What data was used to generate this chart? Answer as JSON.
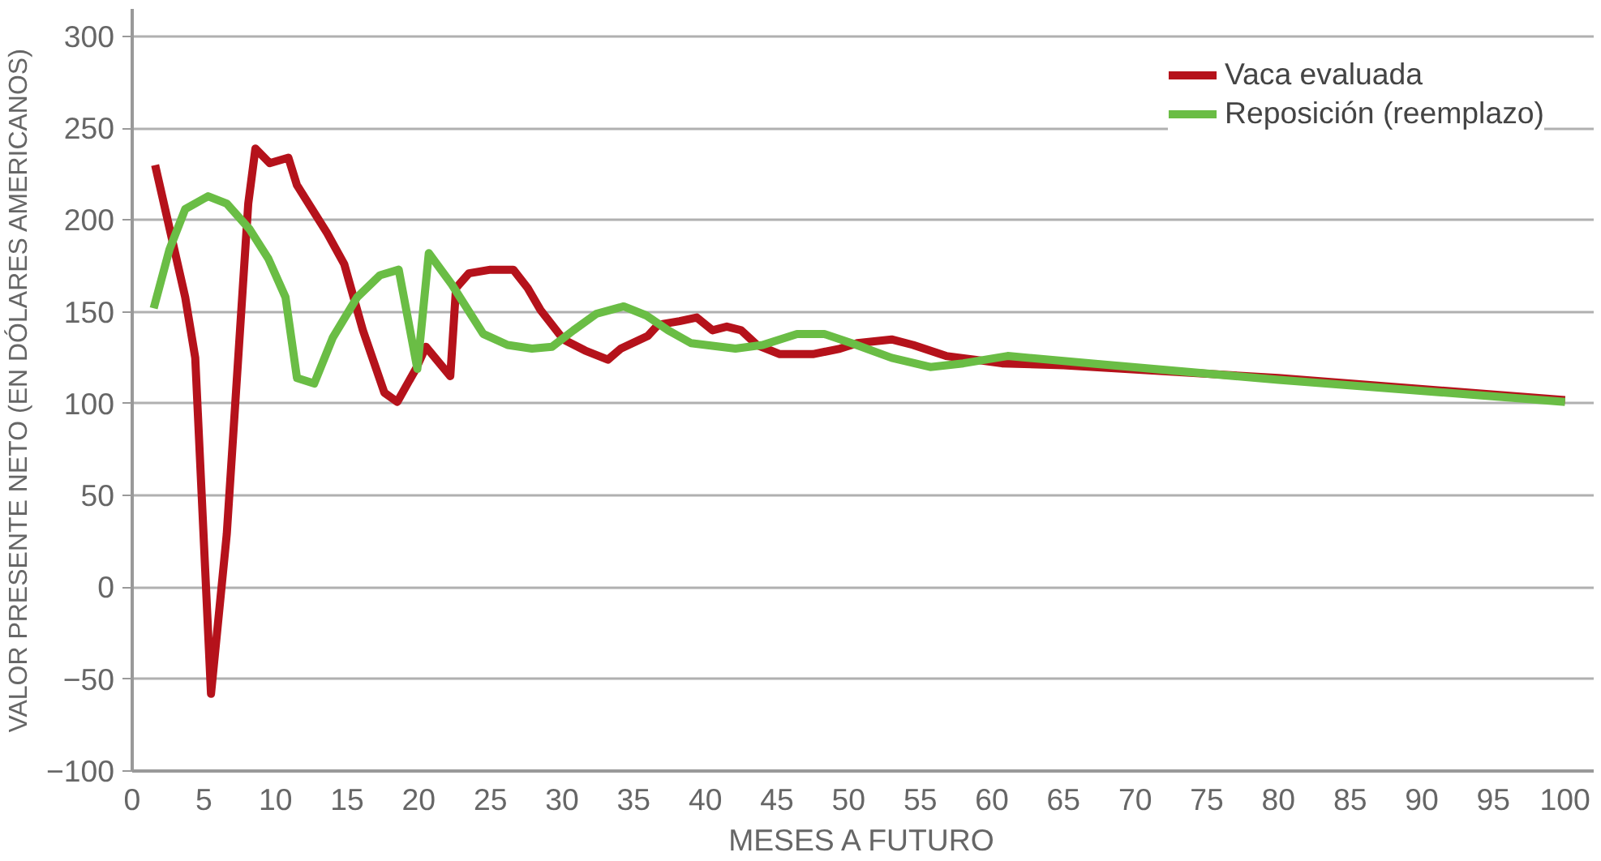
{
  "chart_data": {
    "type": "line",
    "xlabel": "MESES A FUTURO",
    "ylabel": "VALOR PRESENTE NETO (EN DÓLARES AMERICANOS)",
    "xlim": [
      0,
      102
    ],
    "ylim": [
      -100,
      315
    ],
    "xticks": [
      0,
      5,
      10,
      15,
      20,
      25,
      30,
      35,
      40,
      45,
      50,
      55,
      60,
      65,
      70,
      75,
      80,
      85,
      90,
      95,
      100
    ],
    "yticks": [
      -100,
      -50,
      0,
      50,
      100,
      150,
      200,
      250,
      300
    ],
    "grid": "y",
    "legend": "top right",
    "line_style": "solid",
    "marker": "none",
    "series": [
      {
        "name": "Vaca evaluada",
        "color": "#b5121b",
        "x": [
          1.6,
          3.7,
          4.4,
          5.5,
          6.6,
          8.1,
          8.6,
          9.6,
          10.9,
          11.5,
          13.6,
          14.8,
          16.1,
          17.6,
          18.5,
          19.8,
          20.5,
          22.2,
          22.6,
          23.5,
          25,
          26.6,
          27.6,
          28.5,
          30.1,
          31.6,
          33.2,
          34.1,
          36,
          36.7,
          38.2,
          39.4,
          40.5,
          41.5,
          42.5,
          43.6,
          45.2,
          47.5,
          49.4,
          50.6,
          53,
          54.5,
          56.8,
          58.8,
          60.7,
          65,
          80,
          100
        ],
        "values": [
          230,
          158,
          125,
          -58,
          29,
          209,
          239,
          231,
          234,
          219,
          193,
          176,
          140,
          106,
          101,
          119,
          131,
          115,
          163,
          171,
          173,
          173,
          163,
          151,
          135,
          129,
          124,
          130,
          137,
          143,
          145,
          147,
          140,
          142,
          140,
          132,
          127,
          127,
          130,
          133,
          135,
          132,
          126,
          124,
          122,
          121,
          114,
          102
        ]
      },
      {
        "name": "Reposición (reemplazo)",
        "color": "#6abd45",
        "x": [
          1.5,
          2.6,
          3.7,
          5.3,
          6.6,
          8.2,
          9.5,
          10.7,
          11.5,
          12.7,
          14,
          15.7,
          17.3,
          18.6,
          19.9,
          20.7,
          22.3,
          24.5,
          26.2,
          27.9,
          29.3,
          30.8,
          32.4,
          34.3,
          35.9,
          37.4,
          39,
          42.1,
          44,
          46.4,
          48.3,
          50.2,
          53,
          55.7,
          58,
          61.1,
          66.9,
          80,
          100
        ],
        "values": [
          152,
          184,
          206,
          213,
          209,
          195,
          179,
          158,
          114,
          111,
          136,
          158,
          170,
          173,
          119,
          182,
          165,
          138,
          132,
          130,
          131,
          140,
          149,
          153,
          148,
          140,
          133,
          130,
          132,
          138,
          138,
          133,
          125,
          120,
          122,
          126,
          122,
          113,
          101
        ]
      }
    ]
  }
}
